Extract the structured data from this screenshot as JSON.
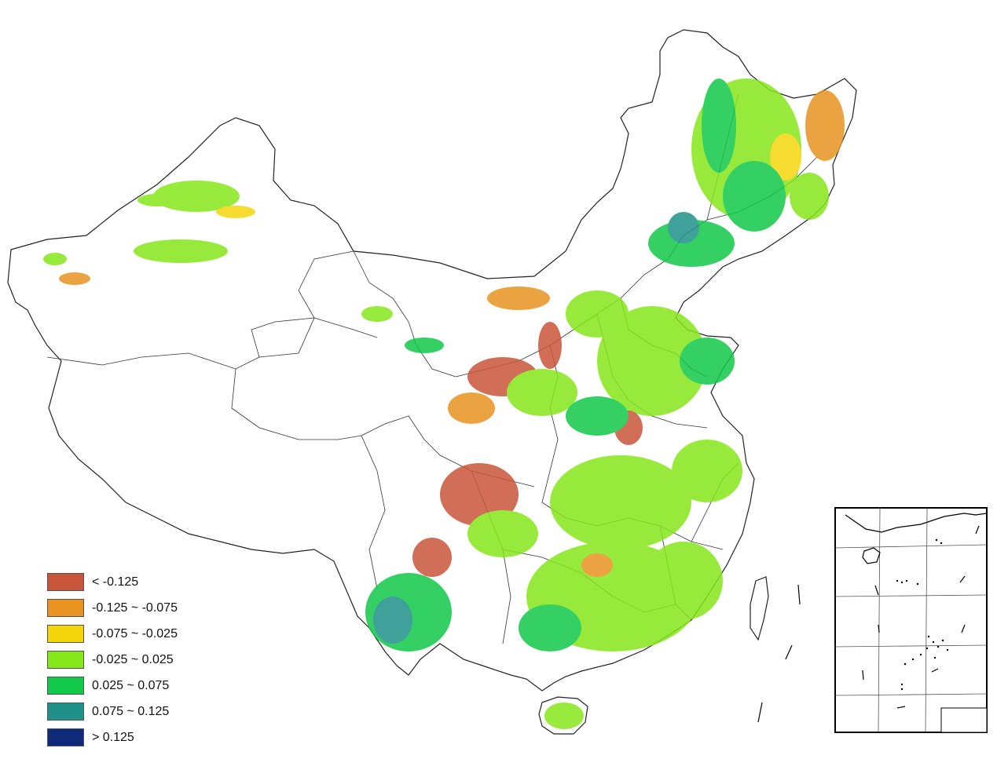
{
  "map": {
    "legend": [
      {
        "label": "< -0.125",
        "color": "#c8553b"
      },
      {
        "label": "-0.125 ~ -0.075",
        "color": "#e8921f"
      },
      {
        "label": "-0.075 ~ -0.025",
        "color": "#f5d60c"
      },
      {
        "label": "-0.025 ~ 0.025",
        "color": "#86e61a"
      },
      {
        "label": "0.025 ~ 0.075",
        "color": "#12c848"
      },
      {
        "label": "0.075 ~ 0.125",
        "color": "#1f9189"
      },
      {
        "label": "> 0.125",
        "color": "#0f2a78"
      }
    ],
    "colors": {
      "boundary": "#222222",
      "background": "#ffffff"
    }
  }
}
